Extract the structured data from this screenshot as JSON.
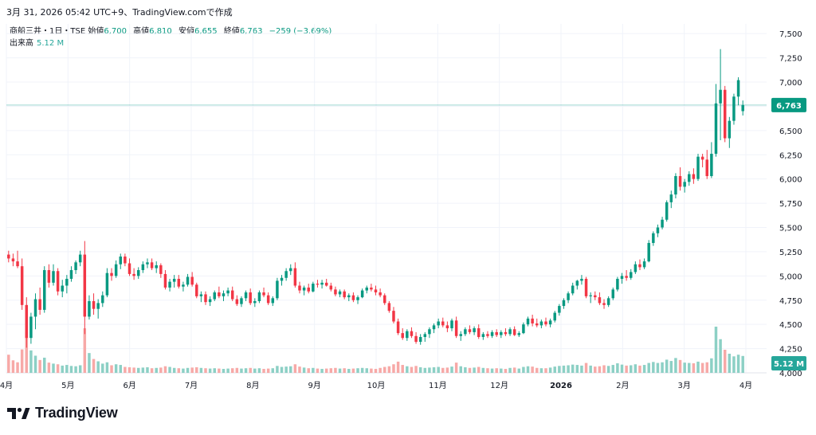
{
  "header": {
    "timestamp": "3月 31, 2026 05:42 UTC+9、TradingView.comで作成"
  },
  "legend": {
    "symbol": "商船三井・1日・TSE",
    "open_label": "始値",
    "open": "6,700",
    "high_label": "高値",
    "high": "6,810",
    "low_label": "安値",
    "low": "6,655",
    "close_label": "終値",
    "close": "6,763",
    "change": "−259 (−3.69%)",
    "volume_label": "出来高",
    "volume": "5.12 M"
  },
  "brand": {
    "name": "TradingView"
  },
  "colors": {
    "up": "#089981",
    "up_light": "#8cd0c5",
    "down": "#f23645",
    "down_light": "#f7a9a7",
    "text": "#131722",
    "grid": "#f0f3fa"
  },
  "chart_data": {
    "type": "candlestick",
    "y_ticks": [
      "7,500",
      "7,250",
      "7,000",
      "6,750",
      "6,500",
      "6,250",
      "6,000",
      "5,750",
      "5,500",
      "5,250",
      "5,000",
      "4,750",
      "4,500",
      "4,250",
      "4,000"
    ],
    "ylim": [
      4000,
      7600
    ],
    "x_ticks": [
      "4月",
      "5月",
      "6月",
      "7月",
      "8月",
      "9月",
      "10月",
      "11月",
      "12月",
      "2026",
      "2月",
      "3月",
      "4月"
    ],
    "last_price": "6,763",
    "last_price_value": 6763,
    "last_volume": "5.12 M",
    "volume_unit": "M",
    "ohlcv": [
      [
        5220,
        5260,
        5140,
        5180,
        5.5
      ],
      [
        5180,
        5230,
        5100,
        5150,
        3.8
      ],
      [
        5150,
        5260,
        5080,
        5100,
        3.2
      ],
      [
        5100,
        5180,
        4650,
        4700,
        7.1
      ],
      [
        4700,
        4780,
        4260,
        4360,
        12.4
      ],
      [
        4360,
        4620,
        4300,
        4580,
        6.8
      ],
      [
        4580,
        4820,
        4450,
        4760,
        5.2
      ],
      [
        4760,
        4880,
        4600,
        4650,
        3.9
      ],
      [
        4650,
        5100,
        4620,
        5060,
        4.6
      ],
      [
        5060,
        5120,
        4880,
        4930,
        3.1
      ],
      [
        4930,
        5120,
        4900,
        5050,
        2.8
      ],
      [
        5050,
        5080,
        4800,
        4840,
        2.6
      ],
      [
        4840,
        4960,
        4780,
        4900,
        2.2
      ],
      [
        4900,
        5010,
        4820,
        4970,
        2.4
      ],
      [
        4970,
        5100,
        4940,
        5060,
        2.1
      ],
      [
        5060,
        5160,
        5020,
        5140,
        2.0
      ],
      [
        5140,
        5260,
        5100,
        5220,
        2.3
      ],
      [
        5220,
        5360,
        4400,
        4580,
        13.5
      ],
      [
        4580,
        4800,
        4550,
        4740,
        6.0
      ],
      [
        4740,
        4820,
        4600,
        4660,
        4.2
      ],
      [
        4660,
        4760,
        4560,
        4720,
        3.5
      ],
      [
        4720,
        4840,
        4680,
        4800,
        2.8
      ],
      [
        4800,
        5080,
        4780,
        5030,
        3.2
      ],
      [
        5030,
        5080,
        4950,
        5000,
        2.3
      ],
      [
        5000,
        5160,
        4980,
        5120,
        2.6
      ],
      [
        5120,
        5230,
        5070,
        5200,
        2.4
      ],
      [
        5200,
        5230,
        5100,
        5130,
        1.8
      ],
      [
        5130,
        5180,
        5000,
        5020,
        1.7
      ],
      [
        5020,
        5080,
        4960,
        5000,
        1.6
      ],
      [
        5000,
        5090,
        4970,
        5060,
        1.5
      ],
      [
        5060,
        5150,
        5030,
        5120,
        1.6
      ],
      [
        5120,
        5180,
        5080,
        5140,
        1.7
      ],
      [
        5140,
        5180,
        5060,
        5080,
        1.4
      ],
      [
        5080,
        5150,
        5030,
        5110,
        1.5
      ],
      [
        5110,
        5130,
        4980,
        5020,
        1.6
      ],
      [
        5020,
        5060,
        4860,
        4880,
        2.0
      ],
      [
        4880,
        4970,
        4840,
        4940,
        1.8
      ],
      [
        4940,
        5010,
        4880,
        4970,
        1.5
      ],
      [
        4970,
        5010,
        4870,
        4890,
        1.4
      ],
      [
        4890,
        4940,
        4840,
        4910,
        1.3
      ],
      [
        4910,
        5020,
        4890,
        4990,
        1.5
      ],
      [
        4990,
        5040,
        4890,
        4910,
        1.6
      ],
      [
        4910,
        4930,
        4770,
        4790,
        1.7
      ],
      [
        4790,
        4840,
        4730,
        4810,
        1.5
      ],
      [
        4810,
        4840,
        4700,
        4730,
        1.4
      ],
      [
        4730,
        4790,
        4690,
        4760,
        1.3
      ],
      [
        4760,
        4850,
        4740,
        4830,
        1.4
      ],
      [
        4830,
        4890,
        4770,
        4790,
        1.3
      ],
      [
        4790,
        4850,
        4740,
        4820,
        1.2
      ],
      [
        4820,
        4880,
        4790,
        4850,
        1.3
      ],
      [
        4850,
        4890,
        4740,
        4760,
        1.4
      ],
      [
        4760,
        4800,
        4690,
        4710,
        1.5
      ],
      [
        4710,
        4790,
        4680,
        4770,
        1.3
      ],
      [
        4770,
        4850,
        4740,
        4830,
        1.4
      ],
      [
        4830,
        4870,
        4700,
        4720,
        1.5
      ],
      [
        4720,
        4770,
        4680,
        4740,
        1.3
      ],
      [
        4740,
        4850,
        4720,
        4830,
        1.4
      ],
      [
        4830,
        4880,
        4780,
        4800,
        1.2
      ],
      [
        4800,
        4830,
        4700,
        4720,
        1.3
      ],
      [
        4720,
        4790,
        4690,
        4770,
        1.4
      ],
      [
        4770,
        4980,
        4750,
        4950,
        2.1
      ],
      [
        4950,
        5010,
        4900,
        4980,
        1.8
      ],
      [
        4980,
        5080,
        4950,
        5050,
        1.9
      ],
      [
        5050,
        5120,
        5010,
        5080,
        2.0
      ],
      [
        5080,
        5140,
        4880,
        4900,
        2.6
      ],
      [
        4900,
        4940,
        4820,
        4850,
        1.9
      ],
      [
        4850,
        4900,
        4800,
        4880,
        1.6
      ],
      [
        4880,
        4920,
        4820,
        4840,
        1.4
      ],
      [
        4840,
        4940,
        4830,
        4920,
        1.5
      ],
      [
        4920,
        4960,
        4880,
        4910,
        1.3
      ],
      [
        4910,
        4960,
        4870,
        4930,
        1.2
      ],
      [
        4930,
        4970,
        4890,
        4900,
        1.3
      ],
      [
        4900,
        4930,
        4840,
        4860,
        1.4
      ],
      [
        4860,
        4890,
        4790,
        4810,
        1.5
      ],
      [
        4810,
        4860,
        4780,
        4840,
        1.3
      ],
      [
        4840,
        4860,
        4760,
        4780,
        1.4
      ],
      [
        4780,
        4820,
        4740,
        4800,
        1.2
      ],
      [
        4800,
        4830,
        4730,
        4750,
        1.3
      ],
      [
        4750,
        4800,
        4710,
        4780,
        1.4
      ],
      [
        4780,
        4870,
        4770,
        4850,
        1.5
      ],
      [
        4850,
        4900,
        4820,
        4880,
        1.4
      ],
      [
        4880,
        4920,
        4840,
        4860,
        1.3
      ],
      [
        4860,
        4900,
        4800,
        4830,
        1.2
      ],
      [
        4830,
        4870,
        4780,
        4800,
        1.5
      ],
      [
        4800,
        4820,
        4700,
        4720,
        1.8
      ],
      [
        4720,
        4740,
        4620,
        4640,
        2.0
      ],
      [
        4640,
        4680,
        4510,
        4530,
        2.6
      ],
      [
        4530,
        4560,
        4390,
        4410,
        3.4
      ],
      [
        4410,
        4460,
        4340,
        4360,
        2.4
      ],
      [
        4360,
        4450,
        4330,
        4430,
        2.0
      ],
      [
        4430,
        4470,
        4360,
        4380,
        1.8
      ],
      [
        4380,
        4420,
        4300,
        4320,
        2.1
      ],
      [
        4320,
        4400,
        4290,
        4370,
        1.7
      ],
      [
        4370,
        4420,
        4320,
        4400,
        1.5
      ],
      [
        4400,
        4470,
        4360,
        4450,
        1.6
      ],
      [
        4450,
        4510,
        4410,
        4490,
        1.7
      ],
      [
        4490,
        4560,
        4460,
        4530,
        1.8
      ],
      [
        4530,
        4570,
        4470,
        4490,
        1.5
      ],
      [
        4490,
        4530,
        4420,
        4460,
        1.6
      ],
      [
        4460,
        4560,
        4430,
        4540,
        1.9
      ],
      [
        4540,
        4580,
        4360,
        4380,
        3.1
      ],
      [
        4380,
        4430,
        4330,
        4400,
        2.0
      ],
      [
        4400,
        4470,
        4380,
        4450,
        1.7
      ],
      [
        4450,
        4490,
        4400,
        4420,
        1.5
      ],
      [
        4420,
        4480,
        4390,
        4460,
        1.6
      ],
      [
        4460,
        4500,
        4350,
        4370,
        1.8
      ],
      [
        4370,
        4420,
        4340,
        4400,
        1.5
      ],
      [
        4400,
        4430,
        4360,
        4380,
        1.4
      ],
      [
        4380,
        4440,
        4360,
        4420,
        1.3
      ],
      [
        4420,
        4450,
        4370,
        4390,
        1.4
      ],
      [
        4390,
        4440,
        4360,
        4420,
        1.3
      ],
      [
        4420,
        4460,
        4380,
        4400,
        1.2
      ],
      [
        4400,
        4470,
        4380,
        4450,
        1.5
      ],
      [
        4450,
        4480,
        4380,
        4390,
        1.6
      ],
      [
        4390,
        4430,
        4370,
        4410,
        1.3
      ],
      [
        4410,
        4520,
        4400,
        4500,
        1.8
      ],
      [
        4500,
        4580,
        4480,
        4560,
        2.0
      ],
      [
        4560,
        4600,
        4480,
        4510,
        1.9
      ],
      [
        4510,
        4560,
        4470,
        4490,
        1.5
      ],
      [
        4490,
        4550,
        4460,
        4530,
        1.4
      ],
      [
        4530,
        4570,
        4480,
        4500,
        1.4
      ],
      [
        4500,
        4560,
        4470,
        4540,
        1.6
      ],
      [
        4540,
        4640,
        4520,
        4620,
        1.9
      ],
      [
        4620,
        4710,
        4590,
        4690,
        2.1
      ],
      [
        4690,
        4770,
        4660,
        4750,
        2.2
      ],
      [
        4750,
        4840,
        4720,
        4820,
        2.3
      ],
      [
        4820,
        4930,
        4800,
        4900,
        2.5
      ],
      [
        4900,
        4960,
        4860,
        4950,
        2.4
      ],
      [
        4950,
        5010,
        4910,
        4970,
        2.2
      ],
      [
        4970,
        4990,
        4770,
        4790,
        3.0
      ],
      [
        4790,
        4830,
        4720,
        4800,
        2.2
      ],
      [
        4800,
        4840,
        4750,
        4780,
        1.9
      ],
      [
        4780,
        4830,
        4700,
        4720,
        2.0
      ],
      [
        4720,
        4760,
        4660,
        4700,
        2.3
      ],
      [
        4700,
        4790,
        4680,
        4770,
        2.1
      ],
      [
        4770,
        4880,
        4750,
        4860,
        2.4
      ],
      [
        4860,
        4990,
        4840,
        4970,
        2.9
      ],
      [
        4970,
        5030,
        4920,
        5000,
        2.5
      ],
      [
        5000,
        5060,
        4950,
        4980,
        2.2
      ],
      [
        4980,
        5070,
        4960,
        5040,
        2.3
      ],
      [
        5040,
        5150,
        5020,
        5120,
        2.6
      ],
      [
        5120,
        5170,
        5060,
        5090,
        2.2
      ],
      [
        5090,
        5180,
        5070,
        5150,
        2.4
      ],
      [
        5150,
        5370,
        5140,
        5340,
        3.0
      ],
      [
        5340,
        5460,
        5310,
        5440,
        3.3
      ],
      [
        5440,
        5530,
        5400,
        5500,
        3.0
      ],
      [
        5500,
        5610,
        5480,
        5580,
        3.2
      ],
      [
        5580,
        5780,
        5560,
        5760,
        4.0
      ],
      [
        5760,
        5880,
        5700,
        5840,
        3.6
      ],
      [
        5840,
        6060,
        5800,
        6030,
        4.5
      ],
      [
        6030,
        6120,
        5880,
        5920,
        3.9
      ],
      [
        5920,
        6000,
        5860,
        5970,
        3.1
      ],
      [
        5970,
        6080,
        5930,
        6050,
        3.0
      ],
      [
        6050,
        6110,
        5950,
        6000,
        2.9
      ],
      [
        6000,
        6260,
        5980,
        6230,
        3.4
      ],
      [
        6230,
        6260,
        6120,
        6200,
        3.0
      ],
      [
        6200,
        6300,
        6000,
        6030,
        3.2
      ],
      [
        6030,
        6380,
        6010,
        6260,
        4.4
      ],
      [
        6260,
        6980,
        6230,
        6780,
        14.0
      ],
      [
        6780,
        7340,
        6400,
        6920,
        10.2
      ],
      [
        6920,
        6960,
        6380,
        6420,
        7.0
      ],
      [
        6420,
        6640,
        6320,
        6600,
        5.8
      ],
      [
        6600,
        6880,
        6560,
        6850,
        5.0
      ],
      [
        6850,
        7050,
        6760,
        7020,
        5.5
      ],
      [
        6700,
        6810,
        6655,
        6763,
        5.12
      ]
    ]
  }
}
